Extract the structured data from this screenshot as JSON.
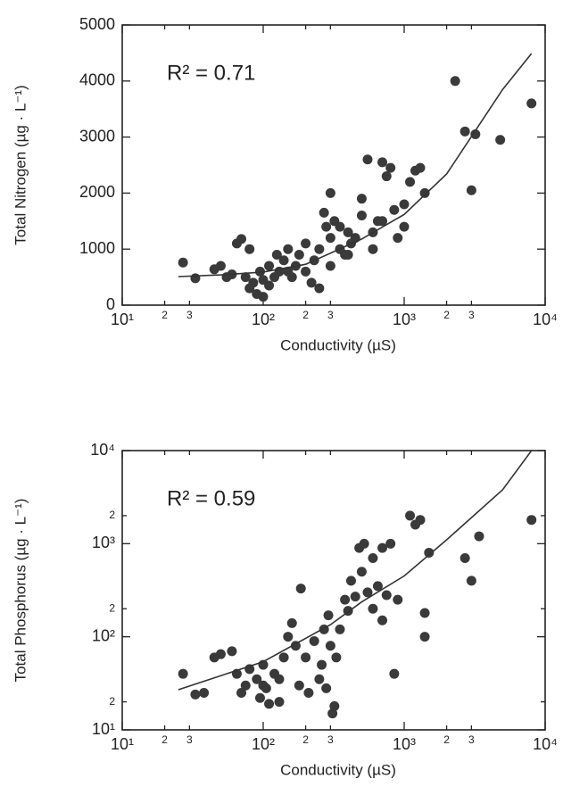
{
  "chart_data": [
    {
      "type": "scatter",
      "x_label": "Conductivity (µS)",
      "y_label": "Total Nitrogen (µg · L⁻¹)",
      "annotation": "R² = 0.71",
      "xlog": true,
      "ylog": false,
      "color": "#3a3a3a",
      "xlim": [
        10,
        10000
      ],
      "ylim": [
        0,
        5000
      ],
      "xticks": [
        {
          "value": 10,
          "label": "10¹"
        },
        {
          "value": 20,
          "label": "2"
        },
        {
          "value": 30,
          "label": "3"
        },
        {
          "value": 100,
          "label": "10²"
        },
        {
          "value": 200,
          "label": "2"
        },
        {
          "value": 300,
          "label": "3"
        },
        {
          "value": 1000,
          "label": "10³"
        },
        {
          "value": 2000,
          "label": "2"
        },
        {
          "value": 3000,
          "label": "3"
        },
        {
          "value": 10000,
          "label": "10⁴"
        }
      ],
      "yticks": [
        0,
        1000,
        2000,
        3000,
        4000,
        5000
      ],
      "x": [
        27,
        33,
        45,
        50,
        55,
        60,
        65,
        70,
        75,
        80,
        85,
        90,
        95,
        100,
        100,
        110,
        110,
        120,
        125,
        130,
        140,
        150,
        160,
        170,
        180,
        200,
        200,
        220,
        230,
        250,
        250,
        270,
        280,
        300,
        300,
        320,
        350,
        380,
        400,
        420,
        450,
        500,
        500,
        550,
        600,
        650,
        700,
        750,
        800,
        850,
        900,
        1000,
        1100,
        1200,
        1300,
        1400,
        2300,
        2700,
        3000,
        3200,
        4800,
        8000,
        400,
        600,
        350,
        700,
        1000,
        150,
        80,
        300
      ],
      "values": [
        760,
        480,
        640,
        700,
        500,
        550,
        1100,
        1180,
        500,
        300,
        400,
        200,
        600,
        150,
        450,
        350,
        700,
        500,
        900,
        600,
        800,
        1000,
        500,
        700,
        900,
        1100,
        600,
        400,
        800,
        300,
        1000,
        1650,
        1400,
        700,
        1200,
        1500,
        1000,
        900,
        1300,
        1100,
        1200,
        1600,
        1900,
        2600,
        1300,
        1500,
        2550,
        2300,
        2450,
        1700,
        1200,
        1800,
        2200,
        2400,
        2450,
        2000,
        4000,
        3100,
        2050,
        3050,
        2950,
        3600,
        900,
        1000,
        1400,
        1500,
        1400,
        600,
        1000,
        2000
      ],
      "fit": {
        "x": [
          25,
          50,
          100,
          200,
          500,
          1000,
          2000,
          5000,
          8000
        ],
        "values": [
          510,
          540,
          590,
          730,
          1180,
          1620,
          2340,
          3850,
          4490
        ]
      }
    },
    {
      "type": "scatter",
      "x_label": "Conductivity (µS)",
      "y_label": "Total Phosphorus (µg · L⁻¹)",
      "annotation": "R² = 0.59",
      "xlog": true,
      "ylog": true,
      "color": "#3a3a3a",
      "xlim": [
        10,
        10000
      ],
      "ylim": [
        10,
        10000
      ],
      "xticks": [
        {
          "value": 10,
          "label": "10¹"
        },
        {
          "value": 20,
          "label": "2"
        },
        {
          "value": 30,
          "label": "3"
        },
        {
          "value": 100,
          "label": "10²"
        },
        {
          "value": 200,
          "label": "2"
        },
        {
          "value": 300,
          "label": "3"
        },
        {
          "value": 1000,
          "label": "10³"
        },
        {
          "value": 2000,
          "label": "2"
        },
        {
          "value": 3000,
          "label": "3"
        },
        {
          "value": 10000,
          "label": "10⁴"
        }
      ],
      "yticks": [
        {
          "value": 10,
          "label": "10¹"
        },
        {
          "value": 20,
          "label": "2"
        },
        {
          "value": 100,
          "label": "10²"
        },
        {
          "value": 200,
          "label": "2"
        },
        {
          "value": 1000,
          "label": "10³"
        },
        {
          "value": 2000,
          "label": "2"
        },
        {
          "value": 10000,
          "label": "10⁴"
        }
      ],
      "x": [
        27,
        33,
        38,
        45,
        50,
        60,
        65,
        70,
        75,
        80,
        90,
        95,
        100,
        105,
        110,
        120,
        130,
        140,
        150,
        160,
        170,
        180,
        185,
        200,
        210,
        230,
        250,
        260,
        270,
        280,
        290,
        300,
        310,
        320,
        330,
        350,
        400,
        450,
        480,
        500,
        520,
        550,
        600,
        650,
        700,
        750,
        800,
        850,
        900,
        1100,
        1200,
        1300,
        1400,
        1400,
        1500,
        2700,
        3000,
        3400,
        8000,
        380,
        420,
        600,
        700,
        100,
        130
      ],
      "values": [
        40,
        24,
        25,
        60,
        65,
        70,
        40,
        25,
        30,
        45,
        35,
        22,
        50,
        28,
        19,
        40,
        20,
        60,
        100,
        140,
        80,
        30,
        330,
        60,
        25,
        90,
        35,
        50,
        120,
        28,
        170,
        80,
        15,
        18,
        60,
        120,
        190,
        270,
        900,
        500,
        1000,
        300,
        700,
        350,
        150,
        280,
        1000,
        40,
        250,
        2000,
        1600,
        1800,
        180,
        100,
        800,
        700,
        400,
        1200,
        1800,
        250,
        400,
        200,
        900,
        30,
        35
      ],
      "fit": {
        "x": [
          25,
          100,
          300,
          500,
          1000,
          2000,
          5000,
          8000
        ],
        "values": [
          27,
          54,
          135,
          237,
          450,
          1100,
          3800,
          10000
        ]
      }
    }
  ]
}
